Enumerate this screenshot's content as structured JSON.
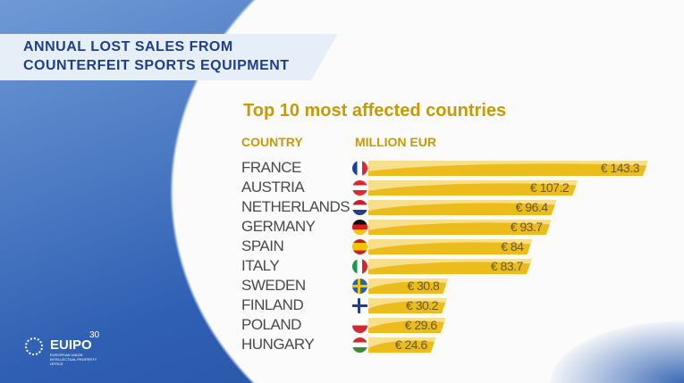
{
  "banner": {
    "line1": "ANNUAL LOST SALES FROM",
    "line2": "COUNTERFEIT SPORTS EQUIPMENT"
  },
  "logo": {
    "name": "EUIPO",
    "sup": "30",
    "sub": "EUROPEAN UNION INTELLECTUAL PROPERTY OFFICE"
  },
  "chart_data": {
    "type": "bar",
    "title": "Top 10 most affected countries",
    "xlabel": "COUNTRY",
    "ylabel": "MILLION EUR",
    "categories": [
      "FRANCE",
      "AUSTRIA",
      "NETHERLANDS",
      "GERMANY",
      "SPAIN",
      "ITALY",
      "SWEDEN",
      "FINLAND",
      "POLAND",
      "HUNGARY"
    ],
    "values": [
      143.3,
      107.2,
      96.4,
      93.7,
      84,
      83.7,
      30.8,
      30.2,
      29.6,
      24.6
    ],
    "labels": [
      "€ 143.3",
      "€ 107.2",
      "€ 96.4",
      "€ 93.7",
      "€ 84",
      "€ 83.7",
      "€ 30.8",
      "€ 30.2",
      "€ 29.6",
      "€ 24.6"
    ],
    "flags": [
      "fr",
      "at",
      "nl",
      "de",
      "es",
      "it",
      "se",
      "fi",
      "pl",
      "hu"
    ],
    "colors": {
      "bar": "#ecbb1c",
      "bar_light": "#f8df8c",
      "title": "#c79b00"
    }
  }
}
